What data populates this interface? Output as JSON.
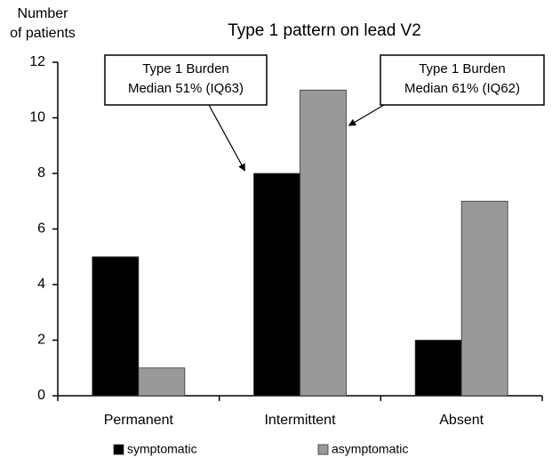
{
  "chart_data": {
    "type": "bar",
    "title": "Type 1 pattern on lead V2",
    "ylabel": [
      "Number",
      "of patients"
    ],
    "categories": [
      "Permanent",
      "Intermittent",
      "Absent"
    ],
    "series": [
      {
        "name": "symptomatic",
        "color": "#000000",
        "values": [
          5,
          8,
          2
        ]
      },
      {
        "name": "asymptomatic",
        "color": "#999999",
        "values": [
          1,
          11,
          7
        ]
      }
    ],
    "ylim": [
      0,
      12
    ],
    "yticks": [
      0,
      2,
      4,
      6,
      8,
      10,
      12
    ],
    "grid": false,
    "annotations": [
      {
        "text": [
          "Type 1 Burden",
          "Median 51% (IQ63)"
        ]
      },
      {
        "text": [
          "Type 1 Burden",
          "Median 61% (IQ62)"
        ]
      }
    ]
  }
}
